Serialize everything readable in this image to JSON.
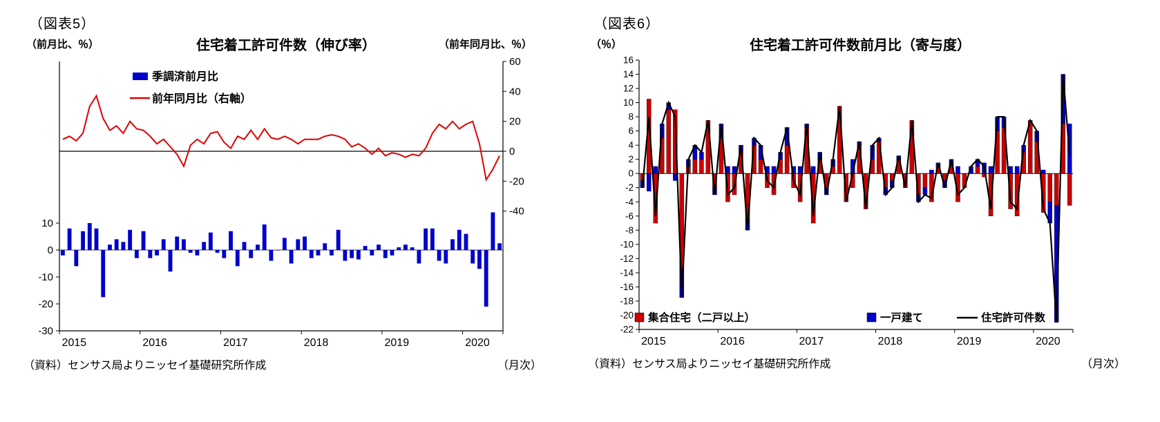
{
  "figure5": {
    "fig_label": "（図表5）",
    "left_axis_unit": "（前月比、％）",
    "title": "住宅着工許可件数（伸び率）",
    "right_axis_unit": "（前年同月比、％）",
    "source": "（資料）センサス局よりニッセイ基礎研究所作成",
    "frequency": "（月次）"
  },
  "figure6": {
    "fig_label": "（図表6）",
    "y_axis_unit": "（％）",
    "title": "住宅着工許可件数前月比（寄与度）",
    "source": "（資料）センサス局よりニッセイ基礎研究所作成",
    "frequency": "（月次）"
  },
  "chart_data": [
    {
      "type": "bar",
      "title": "住宅着工許可件数（伸び率）",
      "x_start": "2015-01",
      "x_frequency": "monthly",
      "n_points": 66,
      "x_year_labels": [
        "2015",
        "2016",
        "2017",
        "2018",
        "2019",
        "2020"
      ],
      "left_axis": {
        "unit": "（前月比、％）",
        "min": -30,
        "max": 70,
        "ticks": [
          10,
          0,
          -10,
          -20,
          -30
        ]
      },
      "right_axis": {
        "unit": "（前年同月比、％）",
        "min": -120,
        "max": 60,
        "ticks": [
          60,
          40,
          20,
          0,
          -20,
          -40
        ]
      },
      "series": [
        {
          "name": "季調済前月比",
          "kind": "bar",
          "axis": "left",
          "color": "#0000cc",
          "values": [
            -2,
            8,
            -6,
            7,
            10,
            8,
            -17.5,
            2,
            4,
            3,
            7.5,
            -3,
            7,
            -3,
            -2,
            4,
            -8,
            5,
            4,
            -1,
            -2,
            3,
            6.5,
            -1,
            -3,
            7,
            -6,
            3,
            -3,
            2,
            9.5,
            -4,
            0,
            4.5,
            -5,
            4,
            5,
            -3,
            -2,
            2.5,
            -2,
            7.5,
            -4,
            -3,
            -3.5,
            1.5,
            -2,
            2,
            -3,
            -2,
            1,
            2,
            1,
            -5,
            8,
            8,
            -4,
            -5,
            4,
            7.5,
            6,
            -5,
            -7,
            -21,
            14,
            2.5
          ]
        },
        {
          "name": "前年同月比（右軸）",
          "kind": "line",
          "axis": "right",
          "color": "#dd0000",
          "values": [
            8,
            10,
            7,
            12,
            30,
            37,
            22,
            14,
            17,
            12,
            20,
            15,
            14,
            10,
            5,
            8,
            3,
            -2,
            -10,
            4,
            8,
            5,
            12,
            13,
            6,
            2,
            10,
            8,
            14,
            8,
            15,
            9,
            8,
            10,
            8,
            5,
            8,
            8,
            8,
            10,
            11,
            10,
            8,
            3,
            5,
            2,
            -2,
            2,
            -3,
            -1,
            -2,
            -4,
            -2,
            -3,
            2,
            12,
            18,
            15,
            20,
            15,
            18,
            20,
            5,
            -19,
            -12,
            -3
          ]
        }
      ]
    },
    {
      "type": "bar",
      "stacked": true,
      "title": "住宅着工許可件数前月比（寄与度）",
      "x_start": "2015-01",
      "x_frequency": "monthly",
      "n_points": 66,
      "x_year_labels": [
        "2015",
        "2016",
        "2017",
        "2018",
        "2019",
        "2020"
      ],
      "y_axis": {
        "unit": "（％）",
        "min": -22,
        "max": 16,
        "tick_step": 2
      },
      "series": [
        {
          "name": "集合住宅（二戸以上）",
          "kind": "bar",
          "color": "#cc0000",
          "values": [
            -1,
            10.5,
            -7,
            5,
            9,
            9,
            -13.5,
            1,
            2,
            2,
            7.5,
            -2,
            5,
            -4,
            -3,
            3,
            -6.5,
            4,
            2,
            -2,
            -3,
            2,
            4,
            -2,
            -4,
            6.5,
            -7,
            2,
            -2,
            1,
            9.5,
            -4,
            -2,
            4,
            -5,
            2,
            4.5,
            -2,
            -1,
            2,
            -2,
            7.5,
            -3,
            -2,
            -4,
            1,
            -1,
            1,
            -4,
            -2,
            0,
            1,
            -0.5,
            -6,
            6,
            6.5,
            -5,
            -6,
            3,
            7.5,
            4.5,
            -5.5,
            -4,
            -4.5,
            7,
            -4.5
          ]
        },
        {
          "name": "一戸建て",
          "kind": "bar",
          "color": "#0000cc",
          "values": [
            -1,
            -2.5,
            1,
            2,
            1,
            -1,
            -4,
            1,
            2,
            1,
            0,
            -1,
            2,
            1,
            1,
            1,
            -1.5,
            1,
            2,
            1,
            1,
            1,
            2.5,
            1,
            1,
            0.5,
            1,
            1,
            -1,
            1,
            0,
            0,
            2,
            0.5,
            0,
            2,
            0.5,
            -1,
            -1,
            0.5,
            0,
            0,
            -1,
            -1,
            0.5,
            0.5,
            -1,
            1,
            1,
            0,
            1,
            1,
            1.5,
            1,
            2,
            1.5,
            1,
            1,
            1,
            0,
            1.5,
            0.5,
            -3,
            -16.5,
            7,
            7
          ]
        },
        {
          "name": "住宅許可件数",
          "kind": "line",
          "color": "#000000",
          "values": [
            -2,
            8,
            -6,
            7,
            10,
            8,
            -17.5,
            2,
            4,
            3,
            7.5,
            -3,
            7,
            -3,
            -2,
            4,
            -8,
            5,
            4,
            -1,
            -2,
            3,
            6.5,
            -1,
            -3,
            7,
            -6,
            3,
            -3,
            2,
            9.5,
            -4,
            0,
            4.5,
            -5,
            4,
            5,
            -3,
            -2,
            2.5,
            -2,
            7.5,
            -4,
            -3,
            -3.5,
            1.5,
            -2,
            2,
            -3,
            -2,
            1,
            2,
            1,
            -5,
            8,
            8,
            -4,
            -5,
            4,
            7.5,
            6,
            -5,
            -7,
            -21,
            14,
            2.5
          ]
        }
      ]
    }
  ]
}
